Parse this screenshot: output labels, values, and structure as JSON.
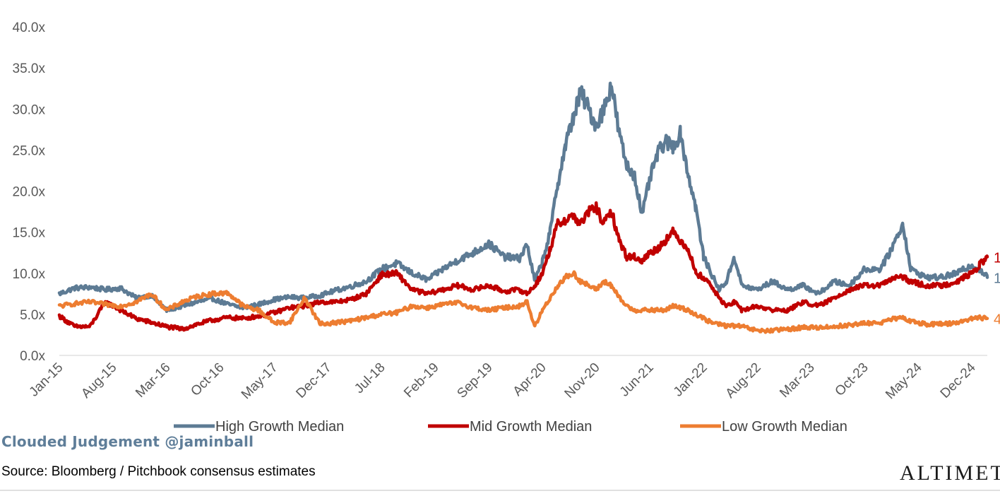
{
  "chart_data": {
    "type": "line",
    "title": "",
    "xlabel": "",
    "ylabel": "",
    "ylim": [
      0,
      40
    ],
    "y_ticks": [
      "0.0x",
      "5.0x",
      "10.0x",
      "15.0x",
      "20.0x",
      "25.0x",
      "30.0x",
      "35.0x",
      "40.0x"
    ],
    "x_ticks": [
      "Jan-15",
      "Aug-15",
      "Mar-16",
      "Oct-16",
      "May-17",
      "Dec-17",
      "Jul-18",
      "Feb-19",
      "Sep-19",
      "Apr-20",
      "Nov-20",
      "Jun-21",
      "Jan-22",
      "Aug-22",
      "Mar-23",
      "Oct-23",
      "May-24",
      "Dec-24"
    ],
    "grid": false,
    "legend_position": "bottom",
    "x_range": [
      "2015-01",
      "2025-02"
    ],
    "series": [
      {
        "name": "High Growth Median",
        "color": "#5d7b94",
        "x": [
          "2015-01",
          "2015-03",
          "2015-05",
          "2015-07",
          "2015-09",
          "2015-11",
          "2016-01",
          "2016-03",
          "2016-05",
          "2016-07",
          "2016-09",
          "2016-11",
          "2017-01",
          "2017-03",
          "2017-05",
          "2017-07",
          "2017-09",
          "2017-11",
          "2018-01",
          "2018-03",
          "2018-05",
          "2018-07",
          "2018-09",
          "2018-11",
          "2019-01",
          "2019-03",
          "2019-05",
          "2019-07",
          "2019-09",
          "2019-11",
          "2020-01",
          "2020-02",
          "2020-03",
          "2020-04",
          "2020-05",
          "2020-06",
          "2020-07",
          "2020-08",
          "2020-09",
          "2020-10",
          "2020-11",
          "2020-12",
          "2021-01",
          "2021-02",
          "2021-03",
          "2021-04",
          "2021-05",
          "2021-06",
          "2021-07",
          "2021-08",
          "2021-09",
          "2021-10",
          "2021-11",
          "2021-12",
          "2022-01",
          "2022-02",
          "2022-03",
          "2022-04",
          "2022-05",
          "2022-06",
          "2022-08",
          "2022-10",
          "2022-12",
          "2023-02",
          "2023-04",
          "2023-06",
          "2023-08",
          "2023-10",
          "2023-12",
          "2024-01",
          "2024-02",
          "2024-03",
          "2024-04",
          "2024-06",
          "2024-08",
          "2024-10",
          "2024-12",
          "2025-01",
          "2025-02"
        ],
        "values": [
          7.5,
          8.2,
          8.3,
          8.0,
          8.2,
          7.0,
          7.3,
          5.5,
          6.0,
          6.5,
          6.9,
          6.2,
          5.8,
          6.2,
          6.8,
          7.1,
          7.0,
          7.3,
          7.9,
          8.4,
          9.0,
          10.5,
          11.2,
          10.0,
          9.2,
          10.5,
          11.6,
          12.5,
          13.6,
          12.0,
          11.8,
          13.5,
          9.0,
          11.5,
          15.0,
          21.0,
          25.5,
          29.0,
          32.0,
          30.0,
          28.0,
          30.0,
          33.0,
          27.0,
          23.0,
          22.0,
          17.0,
          21.5,
          24.5,
          26.0,
          25.5,
          27.0,
          22.0,
          18.0,
          12.0,
          10.0,
          8.0,
          9.0,
          12.0,
          8.5,
          8.0,
          9.0,
          8.0,
          8.5,
          7.5,
          9.0,
          8.5,
          10.5,
          10.5,
          12.0,
          14.0,
          16.0,
          10.5,
          9.5,
          9.5,
          10.0,
          11.0,
          10.5,
          9.5
        ]
      },
      {
        "name": "Mid Growth Median",
        "color": "#c00000",
        "x": [
          "2015-01",
          "2015-03",
          "2015-05",
          "2015-07",
          "2015-09",
          "2015-11",
          "2016-01",
          "2016-03",
          "2016-05",
          "2016-07",
          "2016-09",
          "2016-11",
          "2017-01",
          "2017-03",
          "2017-05",
          "2017-07",
          "2017-09",
          "2017-11",
          "2018-01",
          "2018-03",
          "2018-05",
          "2018-07",
          "2018-09",
          "2018-11",
          "2019-01",
          "2019-03",
          "2019-05",
          "2019-07",
          "2019-09",
          "2019-11",
          "2020-01",
          "2020-02",
          "2020-03",
          "2020-04",
          "2020-05",
          "2020-06",
          "2020-07",
          "2020-08",
          "2020-09",
          "2020-10",
          "2020-11",
          "2020-12",
          "2021-01",
          "2021-02",
          "2021-03",
          "2021-04",
          "2021-05",
          "2021-06",
          "2021-07",
          "2021-08",
          "2021-09",
          "2021-10",
          "2021-11",
          "2021-12",
          "2022-01",
          "2022-02",
          "2022-03",
          "2022-04",
          "2022-05",
          "2022-06",
          "2022-08",
          "2022-10",
          "2022-12",
          "2023-02",
          "2023-04",
          "2023-06",
          "2023-08",
          "2023-10",
          "2023-12",
          "2024-01",
          "2024-02",
          "2024-03",
          "2024-04",
          "2024-06",
          "2024-08",
          "2024-10",
          "2024-12",
          "2025-01",
          "2025-02"
        ],
        "values": [
          4.8,
          3.5,
          3.5,
          6.5,
          5.5,
          4.5,
          4.0,
          3.5,
          3.2,
          3.8,
          4.3,
          4.6,
          4.5,
          4.8,
          5.2,
          5.8,
          6.0,
          6.5,
          6.5,
          6.8,
          7.5,
          9.8,
          10.0,
          8.0,
          7.5,
          8.0,
          8.5,
          8.0,
          8.5,
          7.8,
          8.0,
          7.5,
          8.5,
          10.0,
          13.0,
          16.0,
          16.5,
          17.0,
          16.0,
          17.5,
          18.0,
          16.0,
          17.5,
          14.0,
          12.0,
          12.0,
          11.5,
          12.5,
          13.0,
          14.0,
          15.0,
          14.0,
          13.0,
          10.0,
          9.5,
          8.5,
          7.0,
          6.0,
          6.5,
          5.5,
          6.0,
          5.5,
          5.5,
          6.5,
          6.0,
          7.0,
          8.0,
          8.5,
          8.5,
          9.0,
          9.5,
          9.5,
          9.0,
          8.5,
          8.5,
          9.0,
          10.0,
          11.0,
          12.0
        ]
      },
      {
        "name": "Low Growth Median",
        "color": "#ed7d31",
        "x": [
          "2015-01",
          "2015-03",
          "2015-05",
          "2015-07",
          "2015-09",
          "2015-11",
          "2016-01",
          "2016-03",
          "2016-05",
          "2016-07",
          "2016-09",
          "2016-11",
          "2017-01",
          "2017-03",
          "2017-05",
          "2017-07",
          "2017-09",
          "2017-11",
          "2018-01",
          "2018-03",
          "2018-05",
          "2018-07",
          "2018-09",
          "2018-11",
          "2019-01",
          "2019-03",
          "2019-05",
          "2019-07",
          "2019-09",
          "2019-11",
          "2020-01",
          "2020-02",
          "2020-03",
          "2020-04",
          "2020-05",
          "2020-06",
          "2020-07",
          "2020-08",
          "2020-09",
          "2020-10",
          "2020-11",
          "2020-12",
          "2021-01",
          "2021-02",
          "2021-03",
          "2021-04",
          "2021-05",
          "2021-06",
          "2021-07",
          "2021-08",
          "2021-09",
          "2021-10",
          "2021-11",
          "2021-12",
          "2022-01",
          "2022-02",
          "2022-03",
          "2022-04",
          "2022-05",
          "2022-06",
          "2022-08",
          "2022-10",
          "2022-12",
          "2023-02",
          "2023-04",
          "2023-06",
          "2023-08",
          "2023-10",
          "2023-12",
          "2024-01",
          "2024-02",
          "2024-03",
          "2024-04",
          "2024-06",
          "2024-08",
          "2024-10",
          "2024-12",
          "2025-01",
          "2025-02"
        ],
        "values": [
          6.0,
          6.3,
          6.5,
          6.2,
          6.0,
          6.5,
          7.5,
          5.5,
          6.5,
          7.2,
          7.5,
          7.6,
          6.0,
          5.5,
          4.0,
          4.0,
          7.0,
          3.8,
          4.0,
          4.2,
          4.6,
          5.0,
          5.2,
          6.0,
          5.8,
          6.2,
          6.4,
          5.8,
          5.5,
          5.8,
          6.0,
          6.5,
          3.5,
          5.5,
          7.0,
          8.5,
          9.5,
          10.0,
          9.0,
          8.5,
          8.0,
          9.0,
          8.5,
          7.0,
          6.0,
          5.5,
          5.5,
          5.5,
          5.5,
          5.5,
          6.0,
          5.8,
          5.5,
          5.0,
          4.5,
          4.0,
          3.8,
          3.6,
          3.6,
          3.5,
          3.0,
          3.0,
          3.2,
          3.4,
          3.4,
          3.5,
          3.7,
          3.9,
          4.0,
          4.2,
          4.5,
          4.5,
          4.2,
          3.8,
          3.8,
          4.0,
          4.5,
          4.6,
          4.5
        ]
      }
    ],
    "end_label_glyphs": [
      "1",
      "1",
      "4"
    ]
  },
  "footer": {
    "brand": "Clouded Judgement @jaminball",
    "source": "Source: Bloomberg / Pitchbook consensus estimates",
    "logo": "ALTIMETER"
  }
}
